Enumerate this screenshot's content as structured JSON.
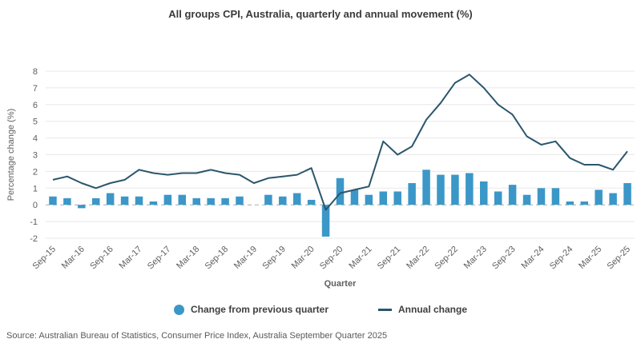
{
  "title": "All groups CPI, Australia, quarterly and annual movement (%)",
  "source": "Source: Australian Bureau of Statistics, Consumer Price Index, Australia September Quarter 2025",
  "colors": {
    "bar": "#3B97C8",
    "line": "#2A566C",
    "grid": "#E8E8E8",
    "zero_line": "#ABABAB",
    "tick_text": "#5F5F5F",
    "axis_title_text": "#454545",
    "title_text": "#3A3A3A",
    "source_text": "#595959"
  },
  "legend": {
    "items": [
      {
        "label": "Change from previous quarter",
        "swatch": "circle",
        "color": "#3B97C8"
      },
      {
        "label": "Annual change",
        "swatch": "line",
        "color": "#2A566C"
      }
    ],
    "position": "bottom-center"
  },
  "chart_data": {
    "type": "combo-bar-line",
    "title": "All groups CPI, Australia, quarterly and annual movement (%)",
    "xlabel": "Quarter",
    "ylabel": "Percentage change (%)",
    "ylim": [
      -2,
      8
    ],
    "yticks": [
      -2,
      -1,
      0,
      1,
      2,
      3,
      4,
      5,
      6,
      7,
      8
    ],
    "grid": true,
    "zero_line_style": "dashed",
    "x_tick_every": 2,
    "legend_position": "bottom",
    "x": [
      "Sep-15",
      "Dec-15",
      "Mar-16",
      "Jun-16",
      "Sep-16",
      "Dec-16",
      "Mar-17",
      "Jun-17",
      "Sep-17",
      "Dec-17",
      "Mar-18",
      "Jun-18",
      "Sep-18",
      "Dec-18",
      "Mar-19",
      "Jun-19",
      "Sep-19",
      "Dec-19",
      "Mar-20",
      "Jun-20",
      "Sep-20",
      "Dec-20",
      "Mar-21",
      "Jun-21",
      "Sep-21",
      "Dec-21",
      "Mar-22",
      "Jun-22",
      "Sep-22",
      "Dec-22",
      "Mar-23",
      "Jun-23",
      "Sep-23",
      "Dec-23",
      "Mar-24",
      "Jun-24",
      "Sep-24",
      "Dec-24",
      "Mar-25",
      "Jun-25",
      "Sep-25"
    ],
    "series": [
      {
        "name": "Change from previous quarter",
        "type": "bar",
        "color": "#3B97C8",
        "values": [
          0.5,
          0.4,
          -0.2,
          0.4,
          0.7,
          0.5,
          0.5,
          0.2,
          0.6,
          0.6,
          0.4,
          0.4,
          0.4,
          0.5,
          0.0,
          0.6,
          0.5,
          0.7,
          0.3,
          -1.9,
          1.6,
          0.9,
          0.6,
          0.8,
          0.8,
          1.3,
          2.1,
          1.8,
          1.8,
          1.9,
          1.4,
          0.8,
          1.2,
          0.6,
          1.0,
          1.0,
          0.2,
          0.2,
          0.9,
          0.7,
          1.3
        ]
      },
      {
        "name": "Annual change",
        "type": "line",
        "color": "#2A566C",
        "values": [
          1.5,
          1.7,
          1.3,
          1.0,
          1.3,
          1.5,
          2.1,
          1.9,
          1.8,
          1.9,
          1.9,
          2.1,
          1.9,
          1.8,
          1.3,
          1.6,
          1.7,
          1.8,
          2.2,
          -0.3,
          0.7,
          0.9,
          1.1,
          3.8,
          3.0,
          3.5,
          5.1,
          6.1,
          7.3,
          7.8,
          7.0,
          6.0,
          5.4,
          4.1,
          3.6,
          3.8,
          2.8,
          2.4,
          2.4,
          2.1,
          3.2
        ]
      }
    ]
  }
}
